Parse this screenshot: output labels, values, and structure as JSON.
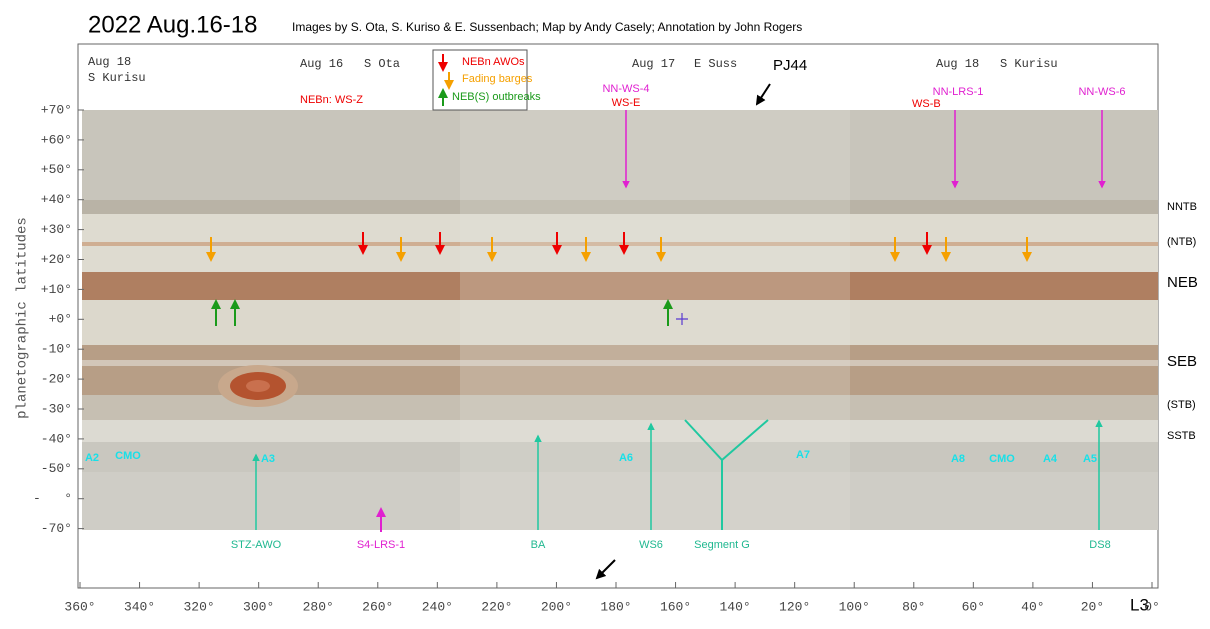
{
  "header": {
    "title": "2022 Aug.16-18",
    "credits": "Images by S. Ota, S. Kuriso & E. Sussenbach;  Map by Andy Casely;  Annotation by John Rogers"
  },
  "sessions": [
    {
      "date": "Aug 18",
      "observer": "S Kurisu"
    },
    {
      "date": "Aug 16",
      "observer": "S Ota"
    },
    {
      "date": "Aug 17",
      "observer": "E Suss"
    },
    {
      "date": "Aug 18",
      "observer": "S Kurisu"
    }
  ],
  "legend": [
    "NEBn AWOs",
    "Fading barges",
    "NEB(S) outbreaks"
  ],
  "annotations": {
    "pj": "PJ44",
    "red": [
      "NEBn:  WS-Z",
      "WS-E",
      "WS-B"
    ],
    "magenta": [
      "NN-WS-4",
      "NN-LRS-1",
      "NN-WS-6",
      "S4-LRS-1"
    ],
    "cyan": [
      "A2",
      "CMO",
      "A3",
      "A6",
      "A7",
      "A8",
      "CMO",
      "A4",
      "A5"
    ],
    "bottom": [
      "STZ-AWO",
      "BA",
      "WS6",
      "Segment G",
      "DS8"
    ]
  },
  "belts": [
    "NNTB",
    "(NTB)",
    "NEB",
    "SEB",
    "(STB)",
    "SSTB"
  ],
  "latitude_axis": {
    "title": "planetographic latitudes",
    "ticks": [
      "+70°",
      "+60°",
      "+50°",
      "+40°",
      "+30°",
      "+20°",
      "+10°",
      "+0°",
      "-10°",
      "-20°",
      "-30°",
      "-40°",
      "-50°",
      "-   °",
      "-70°"
    ]
  },
  "longitude_axis": {
    "label": "L3",
    "ticks": [
      "360°",
      "340°",
      "320°",
      "300°",
      "280°",
      "260°",
      "240°",
      "220°",
      "200°",
      "180°",
      "160°",
      "140°",
      "120°",
      "100°",
      "80°",
      "60°",
      "40°",
      "20°",
      "0°"
    ]
  }
}
